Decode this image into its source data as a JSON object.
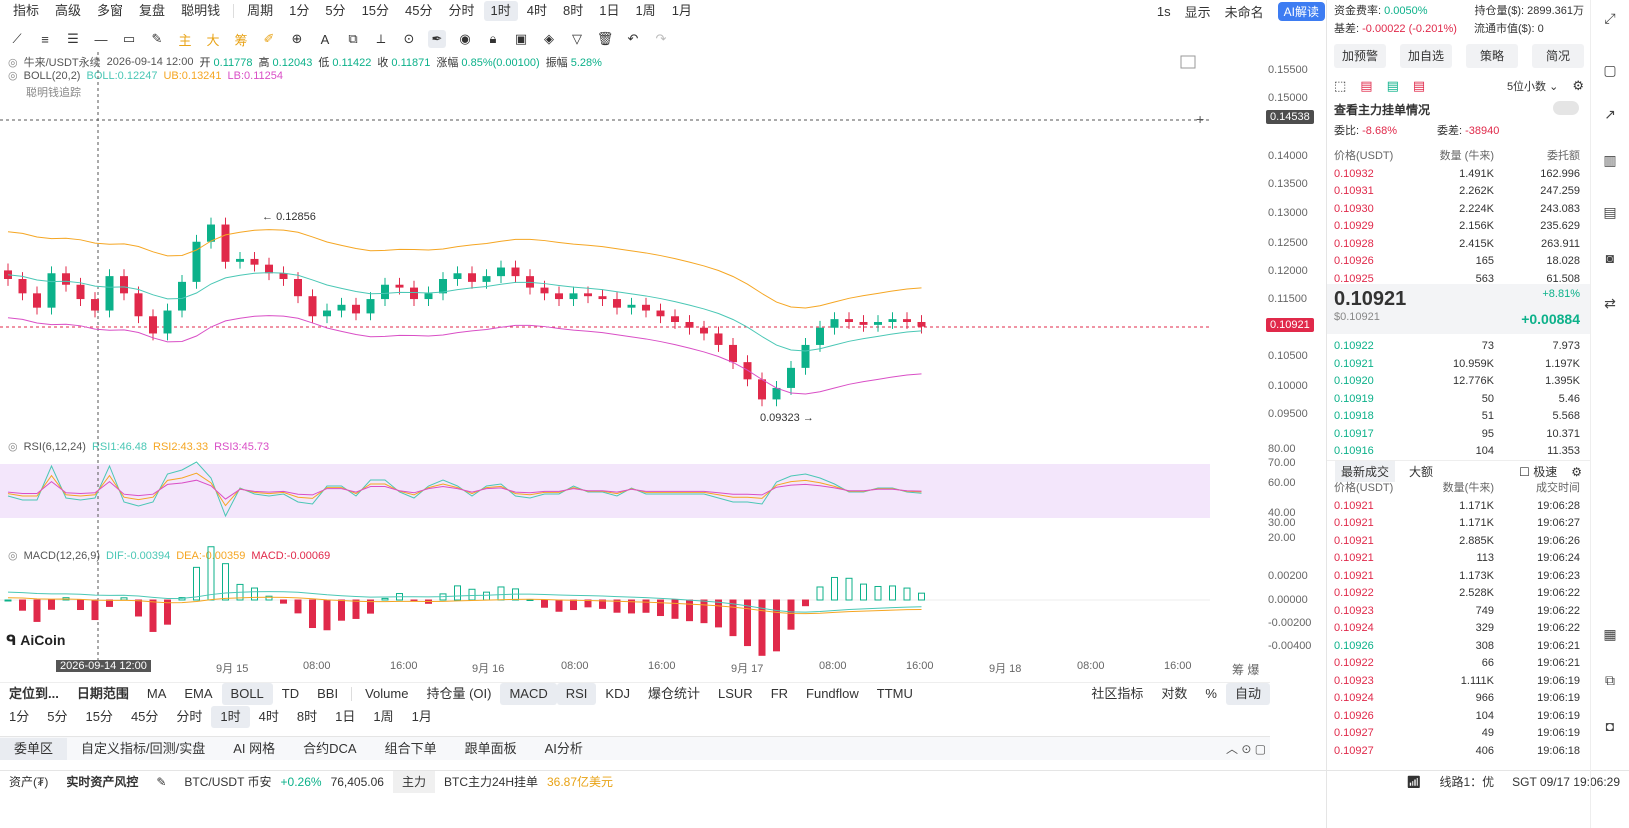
{
  "top_toolbar": {
    "items": [
      "指标",
      "高级",
      "多窗",
      "复盘",
      "聪明钱",
      "周期",
      "1分",
      "5分",
      "15分",
      "45分",
      "分时",
      "1时",
      "4时",
      "8时",
      "1日",
      "1周",
      "1月"
    ],
    "active": "1时",
    "right": [
      "1s",
      "显示",
      "未命名",
      "AI解读"
    ]
  },
  "chart_header": {
    "symbol": "牛来/USDT永续",
    "time": "2026-09-14 12:00",
    "open_label": "开",
    "open": "0.11778",
    "high_label": "高",
    "high": "0.12043",
    "low_label": "低",
    "low": "0.11422",
    "close_label": "收",
    "close": "0.11871",
    "chg_label": "涨幅",
    "chg": "0.85%(0.00100)",
    "amp_label": "振幅",
    "amp": "5.28%"
  },
  "boll": {
    "name": "BOLL(20,2)",
    "boll": "BOLL:0.12247",
    "ub": "UB:0.13241",
    "lb": "LB:0.11254"
  },
  "smart_money": "聪明钱追踪",
  "rsi_header": {
    "name": "RSI(6,12,24)",
    "rsi1": "RSI1:46.48",
    "rsi2": "RSI2:43.33",
    "rsi3": "RSI3:45.73"
  },
  "macd_header": {
    "name": "MACD(12,26,9)",
    "dif": "DIF:-0.00394",
    "dea": "DEA:-0.00359",
    "macd": "MACD:-0.00069"
  },
  "price_axis": {
    "ticks": [
      "0.15500",
      "0.15000",
      "0.14000",
      "0.13500",
      "0.13000",
      "0.12500",
      "0.12000",
      "0.11500",
      "0.10500",
      "0.10000",
      "0.09500"
    ],
    "cross_price": "0.14538",
    "last_price": "0.10921"
  },
  "rsi_axis": [
    "80.00",
    "70.00",
    "60.00",
    "40.00",
    "30.00",
    "20.00"
  ],
  "macd_axis": [
    "0.00200",
    "0.00000",
    "-0.00200",
    "-0.00400"
  ],
  "annotations": {
    "high": "0.12856",
    "low": "0.09323"
  },
  "time_axis": {
    "labels": [
      "9月 15",
      "08:00",
      "16:00",
      "9月 16",
      "08:00",
      "16:00",
      "9月 17",
      "08:00",
      "16:00",
      "9月 18",
      "08:00",
      "16:00"
    ],
    "cursor": "2026-09-14 12:00"
  },
  "logo": "AiCoin",
  "indicator_bar": {
    "left": [
      "定位到...",
      "日期范围"
    ],
    "main": [
      "MA",
      "EMA",
      "BOLL",
      "TD",
      "BBI"
    ],
    "sub": [
      "Volume",
      "持仓量 (OI)",
      "MACD",
      "RSI",
      "KDJ",
      "爆仓统计",
      "LSUR",
      "FR",
      "Fundflow",
      "TTMU"
    ],
    "right": [
      "社区指标",
      "对数",
      "%",
      "自动"
    ]
  },
  "period_bar": [
    "1分",
    "5分",
    "15分",
    "45分",
    "分时",
    "1时",
    "4时",
    "8时",
    "1日",
    "1周",
    "1月"
  ],
  "tabs": [
    "委单区",
    "自定义指标/回测/实盘",
    "AI 网格",
    "合约DCA",
    "组合下单",
    "跟单面板",
    "AI分析"
  ],
  "status_bar": {
    "asset": "资产(₮)",
    "risk": "实时资产风控",
    "pair": "BTC/USDT 币安",
    "pair_chg": "+0.26%",
    "pair_price": "76,405.06",
    "main_tag": "主力",
    "main_text": "BTC主力24H挂单",
    "main_value": "36.87亿美元",
    "line": "线路1：优",
    "time": "SGT 09/17 19:06:29"
  },
  "right_panel": {
    "funding_label": "资金费率:",
    "funding": "0.0050%",
    "oi_label": "持仓量($):",
    "oi": "2899.361万",
    "basis_label": "基差:",
    "basis": "-0.00022 (-0.201%)",
    "float_label": "流通市值($):",
    "float": "0",
    "buttons": [
      "加预警",
      "加自选",
      "策略",
      "简况"
    ],
    "precision": "5位小数",
    "depth_title": "查看主力挂单情况",
    "ratio_label": "委比:",
    "ratio": "-8.68%",
    "diff_label": "委差:",
    "diff": "-38940",
    "ob_headers": [
      "价格(USDT)",
      "数量 (牛来)",
      "委托额"
    ],
    "asks": [
      [
        "0.10932",
        "1.491K",
        "162.996"
      ],
      [
        "0.10931",
        "2.262K",
        "247.259"
      ],
      [
        "0.10930",
        "2.224K",
        "243.083"
      ],
      [
        "0.10929",
        "2.156K",
        "235.629"
      ],
      [
        "0.10928",
        "2.415K",
        "263.911"
      ],
      [
        "0.10926",
        "165",
        "18.028"
      ],
      [
        "0.10925",
        "563",
        "61.508"
      ]
    ],
    "last_price": "0.10921",
    "last_usd": "$0.10921",
    "last_pct": "+8.81%",
    "last_chg": "+0.00884",
    "bids": [
      [
        "0.10922",
        "73",
        "7.973"
      ],
      [
        "0.10921",
        "10.959K",
        "1.197K"
      ],
      [
        "0.10920",
        "12.776K",
        "1.395K"
      ],
      [
        "0.10919",
        "50",
        "5.46"
      ],
      [
        "0.10918",
        "51",
        "5.568"
      ],
      [
        "0.10917",
        "95",
        "10.371"
      ],
      [
        "0.10916",
        "104",
        "11.353"
      ]
    ],
    "trade_tabs": [
      "最新成交",
      "大额"
    ],
    "fast_label": "极速",
    "trade_headers": [
      "价格(USDT)",
      "数量(牛来)",
      "成交时间"
    ],
    "trades": [
      [
        "0.10921",
        "1.171K",
        "19:06:28",
        "r"
      ],
      [
        "0.10921",
        "1.171K",
        "19:06:27",
        "r"
      ],
      [
        "0.10921",
        "2.885K",
        "19:06:26",
        "r"
      ],
      [
        "0.10921",
        "113",
        "19:06:24",
        "r"
      ],
      [
        "0.10921",
        "1.173K",
        "19:06:23",
        "r"
      ],
      [
        "0.10922",
        "2.528K",
        "19:06:22",
        "r"
      ],
      [
        "0.10923",
        "749",
        "19:06:22",
        "r"
      ],
      [
        "0.10924",
        "329",
        "19:06:22",
        "r"
      ],
      [
        "0.10926",
        "308",
        "19:06:21",
        "g"
      ],
      [
        "0.10922",
        "66",
        "19:06:21",
        "r"
      ],
      [
        "0.10923",
        "1.111K",
        "19:06:19",
        "r"
      ],
      [
        "0.10924",
        "966",
        "19:06:19",
        "r"
      ],
      [
        "0.10926",
        "104",
        "19:06:19",
        "r"
      ],
      [
        "0.10927",
        "49",
        "19:06:19",
        "r"
      ],
      [
        "0.10927",
        "406",
        "19:06:18",
        "r"
      ]
    ]
  },
  "colors": {
    "up": "#0cb18a",
    "down": "#e0294a",
    "boll_ub": "#f5a623",
    "boll_mid": "#4ac7b5",
    "boll_lb": "#d94fc6",
    "accent": "#3d7cf2"
  }
}
